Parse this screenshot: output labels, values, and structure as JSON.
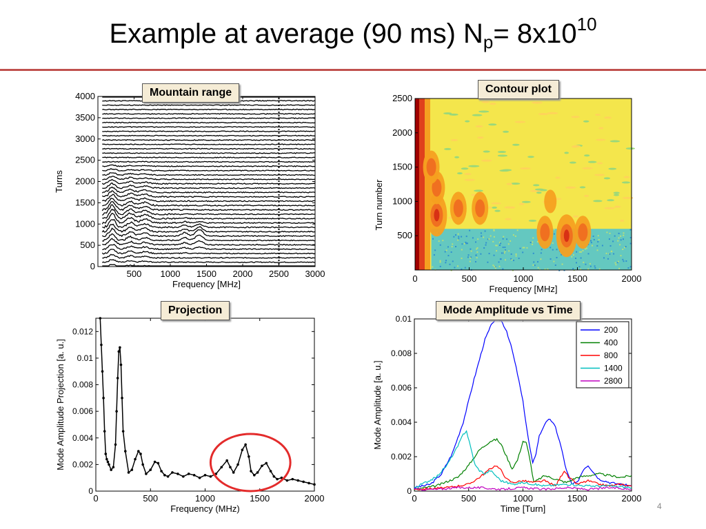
{
  "slide": {
    "title_main": "Example at average (90 ms) N",
    "title_sub": "p",
    "title_eq": "= 8x10",
    "title_sup": "10",
    "page_number": "4"
  },
  "labels": {
    "mountain": "Mountain range",
    "contour": "Contour plot",
    "projection": "Projection",
    "mode": "Mode Amplitude vs Time"
  },
  "colors": {
    "rule": "#c0504d",
    "callout_bg": "#f5ecd6",
    "highlight_circle": "#e32b2b"
  },
  "chart_data": [
    {
      "id": "mountain",
      "type": "line",
      "xlabel": "Frequency [MHz]",
      "ylabel": "Turns",
      "xlim": [
        0,
        3000
      ],
      "ylim": [
        0,
        4000
      ],
      "xticks": [
        "500",
        "1000",
        "1500",
        "2000",
        "2500",
        "3000"
      ],
      "yticks": [
        "0",
        "500",
        "1000",
        "1500",
        "2000",
        "2500",
        "3000",
        "3500",
        "4000"
      ],
      "trace_count": 40,
      "peaks_mhz": [
        200,
        400,
        600,
        1200,
        1400,
        2500
      ]
    },
    {
      "id": "contour",
      "type": "heatmap",
      "xlabel": "Frequency [MHz]",
      "ylabel": "Turn number",
      "xlim": [
        0,
        2000
      ],
      "ylim": [
        0,
        2500
      ],
      "xticks": [
        "0",
        "500",
        "1000",
        "1500",
        "2000"
      ],
      "yticks": [
        "500",
        "1000",
        "1500",
        "2000",
        "2500"
      ],
      "hot_spots": [
        {
          "x": 200,
          "y": 800,
          "level": 3
        },
        {
          "x": 200,
          "y": 1200,
          "level": 2
        },
        {
          "x": 150,
          "y": 1500,
          "level": 2
        },
        {
          "x": 400,
          "y": 900,
          "level": 2
        },
        {
          "x": 600,
          "y": 900,
          "level": 2
        },
        {
          "x": 1200,
          "y": 550,
          "level": 2
        },
        {
          "x": 1400,
          "y": 500,
          "level": 3
        },
        {
          "x": 1550,
          "y": 550,
          "level": 2
        },
        {
          "x": 1250,
          "y": 1000,
          "level": 1
        }
      ]
    },
    {
      "id": "projection",
      "type": "scatter",
      "xlabel": "Frequency (MHz)",
      "ylabel": "Mode Amplitude Projection [a. u.]",
      "xlim": [
        0,
        2000
      ],
      "ylim": [
        0,
        0.013
      ],
      "xticks": [
        "0",
        "500",
        "1000",
        "1500",
        "2000"
      ],
      "yticks": [
        "0",
        "0.002",
        "0.004",
        "0.006",
        "0.008",
        "0.01",
        "0.012"
      ],
      "x": [
        40,
        50,
        60,
        70,
        80,
        90,
        100,
        110,
        120,
        140,
        160,
        180,
        190,
        200,
        210,
        220,
        230,
        240,
        250,
        270,
        300,
        330,
        360,
        390,
        410,
        430,
        460,
        500,
        540,
        570,
        600,
        630,
        660,
        700,
        750,
        800,
        850,
        900,
        950,
        1000,
        1050,
        1100,
        1150,
        1200,
        1230,
        1260,
        1300,
        1340,
        1370,
        1400,
        1420,
        1450,
        1480,
        1520,
        1560,
        1600,
        1630,
        1660,
        1700,
        1750,
        1800,
        1850,
        1900,
        1950,
        2000
      ],
      "y": [
        0.013,
        0.011,
        0.009,
        0.007,
        0.0045,
        0.0028,
        0.0024,
        0.0022,
        0.002,
        0.0016,
        0.0018,
        0.0035,
        0.006,
        0.0085,
        0.0105,
        0.0108,
        0.0095,
        0.007,
        0.0045,
        0.003,
        0.0014,
        0.0016,
        0.0024,
        0.003,
        0.0028,
        0.002,
        0.0013,
        0.0016,
        0.0022,
        0.0021,
        0.0015,
        0.0012,
        0.0011,
        0.0014,
        0.0013,
        0.0011,
        0.0013,
        0.0012,
        0.001,
        0.0012,
        0.0011,
        0.0013,
        0.0018,
        0.0023,
        0.0018,
        0.0014,
        0.002,
        0.0031,
        0.0035,
        0.0026,
        0.0015,
        0.0012,
        0.0014,
        0.0019,
        0.0021,
        0.0015,
        0.0011,
        0.0009,
        0.001,
        0.0008,
        0.0009,
        0.0008,
        0.0007,
        0.0006,
        0.0005
      ],
      "highlight": {
        "x_range": [
          1050,
          1780
        ],
        "y_range": [
          0.0,
          0.0043
        ]
      }
    },
    {
      "id": "mode",
      "type": "line",
      "xlabel": "Time [Turn]",
      "ylabel": "Mode Amplitude [a. u.]",
      "xlim": [
        0,
        2000
      ],
      "ylim": [
        0,
        0.01
      ],
      "xticks": [
        "0",
        "500",
        "1000",
        "1500",
        "2000"
      ],
      "yticks": [
        "0",
        "0.002",
        "0.004",
        "0.006",
        "0.008",
        "0.01"
      ],
      "series": [
        {
          "name": "200",
          "color": "#0000ff",
          "x": [
            0,
            150,
            250,
            350,
            450,
            550,
            650,
            720,
            760,
            800,
            850,
            900,
            950,
            1000,
            1050,
            1090,
            1120,
            1150,
            1200,
            1250,
            1300,
            1350,
            1400,
            1450,
            1500,
            1560,
            1600,
            1650,
            1700,
            1800,
            1900,
            2000
          ],
          "y": [
            0.0002,
            0.0004,
            0.001,
            0.0022,
            0.004,
            0.0065,
            0.0088,
            0.0098,
            0.01,
            0.0099,
            0.0093,
            0.0082,
            0.0068,
            0.0052,
            0.003,
            0.0016,
            0.0022,
            0.0032,
            0.0039,
            0.0042,
            0.0037,
            0.0026,
            0.0012,
            0.0004,
            0.0005,
            0.0013,
            0.0015,
            0.0011,
            0.0007,
            0.0005,
            0.0004,
            0.0003
          ]
        },
        {
          "name": "400",
          "color": "#008000",
          "x": [
            0,
            200,
            400,
            500,
            600,
            700,
            760,
            800,
            850,
            900,
            950,
            1000,
            1030,
            1060,
            1100,
            1200,
            1300,
            1400,
            1500,
            1600,
            1700,
            1800,
            1900,
            2000
          ],
          "y": [
            0.0001,
            0.0003,
            0.0008,
            0.0015,
            0.0024,
            0.0029,
            0.003,
            0.0027,
            0.002,
            0.0013,
            0.0018,
            0.0029,
            0.0028,
            0.002,
            0.0005,
            0.0009,
            0.0007,
            0.0005,
            0.0008,
            0.0009,
            0.001,
            0.0009,
            0.0008,
            0.0009
          ]
        },
        {
          "name": "800",
          "color": "#ff0000",
          "x": [
            0,
            300,
            500,
            600,
            700,
            750,
            800,
            850,
            900,
            1000,
            1100,
            1200,
            1300,
            1380,
            1420,
            1500,
            1600,
            1700,
            1800,
            1900,
            2000
          ],
          "y": [
            0.0001,
            0.0002,
            0.0004,
            0.0008,
            0.0013,
            0.0015,
            0.0012,
            0.0007,
            0.0005,
            0.0006,
            0.0005,
            0.0006,
            0.0003,
            0.0012,
            0.0008,
            0.0004,
            0.0006,
            0.0004,
            0.0003,
            0.0004,
            0.0003
          ]
        },
        {
          "name": "1400",
          "color": "#00bfbf",
          "x": [
            0,
            200,
            300,
            400,
            450,
            480,
            520,
            560,
            600,
            650,
            700,
            750,
            800,
            900,
            1000,
            1200,
            1400,
            1600,
            1800,
            2000
          ],
          "y": [
            0.0002,
            0.0008,
            0.0015,
            0.0026,
            0.0033,
            0.0035,
            0.0025,
            0.0015,
            0.0012,
            0.001,
            0.0012,
            0.0009,
            0.0006,
            0.0004,
            0.0005,
            0.0003,
            0.0004,
            0.0003,
            0.0003,
            0.0002
          ]
        },
        {
          "name": "2800",
          "color": "#bf00bf",
          "x": [
            0,
            200,
            400,
            600,
            800,
            1000,
            1200,
            1400,
            1600,
            1800,
            2000
          ],
          "y": [
            0.0001,
            0.0001,
            0.0002,
            0.0002,
            0.0001,
            0.0002,
            0.0001,
            0.0002,
            0.0001,
            0.0002,
            0.0001
          ]
        }
      ]
    }
  ]
}
